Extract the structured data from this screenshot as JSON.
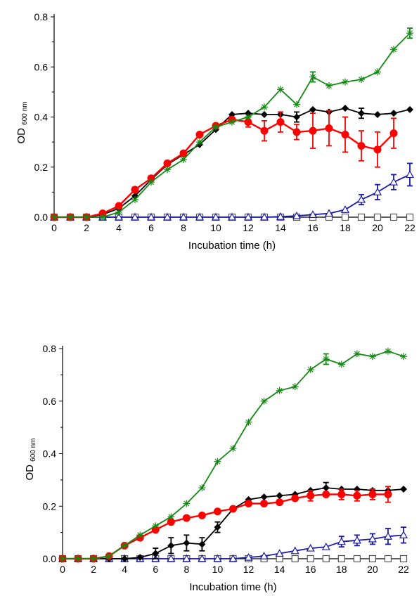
{
  "chart_data": [
    {
      "type": "line",
      "xlabel": "Incubation time (h)",
      "ylabel": "OD",
      "ylabel_sub": "600 nm",
      "xlim": [
        0,
        22
      ],
      "ylim": [
        0,
        0.8
      ],
      "xticks": [
        "0",
        "2",
        "4",
        "6",
        "8",
        "10",
        "12",
        "14",
        "16",
        "18",
        "20",
        "22"
      ],
      "yticks": [
        "0.0",
        "0.2",
        "0.4",
        "0.6",
        "0.8"
      ],
      "x": [
        0,
        1,
        2,
        3,
        4,
        5,
        6,
        7,
        8,
        9,
        10,
        11,
        12,
        13,
        14,
        15,
        16,
        17,
        18,
        19,
        20,
        21,
        22
      ],
      "series": [
        {
          "color": "#000000",
          "marker": "diamond",
          "values": [
            0,
            0,
            0,
            0.01,
            0.035,
            0.085,
            0.15,
            0.21,
            0.25,
            0.29,
            0.35,
            0.41,
            0.415,
            0.41,
            0.41,
            0.4,
            0.43,
            0.42,
            0.435,
            0.415,
            0.41,
            0.415,
            0.43
          ],
          "errors": {
            "15": 0.02,
            "19": 0.02
          }
        },
        {
          "color": "#ff0000",
          "marker": "circle",
          "values": [
            0,
            0,
            0,
            0.015,
            0.045,
            0.11,
            0.155,
            0.215,
            0.255,
            0.33,
            0.365,
            0.39,
            0.38,
            0.345,
            0.38,
            0.34,
            0.345,
            0.355,
            0.33,
            0.285,
            0.27,
            0.335,
            null
          ],
          "errors": {
            "12": 0.02,
            "13": 0.04,
            "14": 0.04,
            "15": 0.03,
            "16": 0.07,
            "17": 0.07,
            "18": 0.07,
            "19": 0.06,
            "20": 0.07,
            "21": 0.06
          }
        },
        {
          "color": "#138a13",
          "marker": "star",
          "values": [
            0,
            0,
            0,
            0,
            0.02,
            0.07,
            0.14,
            0.19,
            0.23,
            0.3,
            0.36,
            0.38,
            0.4,
            0.44,
            0.51,
            0.45,
            0.56,
            0.525,
            0.54,
            0.55,
            0.58,
            0.67,
            0.735
          ],
          "errors": {
            "16": 0.02,
            "22": 0.02
          }
        },
        {
          "color": "#1a1aa8",
          "marker": "triangle",
          "values": [
            0,
            0,
            0,
            0,
            0,
            0,
            0,
            0,
            0,
            0,
            0,
            0,
            0,
            0,
            0.002,
            0.005,
            0.01,
            0.015,
            0.03,
            0.07,
            0.1,
            0.14,
            0.17
          ],
          "errors": {
            "19": 0.02,
            "20": 0.03,
            "21": 0.03,
            "22": 0.045
          }
        },
        {
          "color": "#555555",
          "marker": "square",
          "values": [
            0,
            0,
            0,
            0,
            0,
            0,
            0,
            0,
            0,
            0,
            0,
            0,
            0,
            0,
            0,
            0,
            0,
            0,
            0,
            0,
            0,
            0,
            0
          ],
          "errors": {}
        }
      ]
    },
    {
      "type": "line",
      "xlabel": "Incubation time (h)",
      "ylabel": "OD",
      "ylabel_sub": "600 nm",
      "xlim": [
        0,
        22
      ],
      "ylim": [
        0,
        0.8
      ],
      "xticks": [
        "0",
        "2",
        "4",
        "6",
        "8",
        "10",
        "12",
        "14",
        "16",
        "18",
        "20",
        "22"
      ],
      "yticks": [
        "0.0",
        "0.2",
        "0.4",
        "0.6",
        "0.8"
      ],
      "x": [
        0,
        1,
        2,
        3,
        4,
        5,
        6,
        7,
        8,
        9,
        10,
        11,
        12,
        13,
        14,
        15,
        16,
        17,
        18,
        19,
        20,
        21,
        22
      ],
      "series": [
        {
          "color": "#000000",
          "marker": "diamond",
          "values": [
            0,
            0,
            0,
            0,
            0,
            0.005,
            0.02,
            0.05,
            0.06,
            0.055,
            0.12,
            0.19,
            0.225,
            0.235,
            0.24,
            0.245,
            0.26,
            0.27,
            0.265,
            0.265,
            0.26,
            0.26,
            0.265
          ],
          "errors": {
            "6": 0.02,
            "7": 0.03,
            "8": 0.03,
            "9": 0.025,
            "10": 0.02,
            "17": 0.02
          }
        },
        {
          "color": "#ff0000",
          "marker": "circle",
          "values": [
            0,
            0,
            0,
            0.01,
            0.05,
            0.08,
            0.11,
            0.14,
            0.155,
            0.165,
            0.18,
            0.19,
            0.21,
            0.21,
            0.215,
            0.23,
            0.24,
            0.245,
            0.245,
            0.24,
            0.245,
            0.245,
            null
          ],
          "errors": {
            "16": 0.02,
            "18": 0.02,
            "19": 0.02,
            "20": 0.02,
            "21": 0.03
          }
        },
        {
          "color": "#138a13",
          "marker": "star",
          "values": [
            0,
            0,
            0,
            0.01,
            0.05,
            0.09,
            0.125,
            0.16,
            0.21,
            0.27,
            0.37,
            0.42,
            0.52,
            0.6,
            0.64,
            0.655,
            0.72,
            0.76,
            0.74,
            0.78,
            0.77,
            0.79,
            0.77
          ],
          "errors": {
            "17": 0.02
          }
        },
        {
          "color": "#1a1aa8",
          "marker": "triangle",
          "values": [
            0,
            0,
            0,
            0,
            0,
            0,
            0,
            0,
            0,
            0,
            0,
            0,
            0.005,
            0.01,
            0.02,
            0.03,
            0.04,
            0.045,
            0.065,
            0.07,
            0.075,
            0.085,
            0.09
          ],
          "errors": {
            "18": 0.02,
            "19": 0.02,
            "20": 0.02,
            "21": 0.03,
            "22": 0.03
          }
        },
        {
          "color": "#555555",
          "marker": "square",
          "values": [
            0,
            0,
            0,
            0,
            0,
            0,
            0,
            0,
            0,
            0,
            0,
            0,
            0,
            0,
            0,
            0,
            0,
            0,
            0,
            0,
            0,
            0,
            0
          ],
          "errors": {}
        }
      ]
    }
  ]
}
